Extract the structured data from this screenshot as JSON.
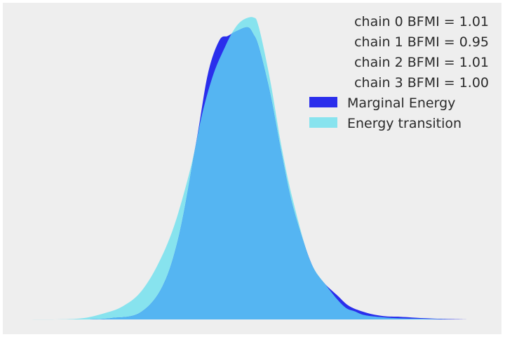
{
  "chart_data": {
    "type": "area",
    "title": "",
    "xlabel": "",
    "ylabel": "",
    "grid": false,
    "axes_visible": false,
    "legend_position": "top-right",
    "legend_text": [
      "chain  0 BFMI = 1.01",
      "chain  1 BFMI = 0.95",
      "chain  2 BFMI = 1.01",
      "chain  3 BFMI = 1.00"
    ],
    "xlim": [
      -4.0,
      4.0
    ],
    "ylim": [
      0,
      0.46
    ],
    "series": [
      {
        "name": "Marginal Energy",
        "color": "#2a2eec",
        "x": [
          -2.9,
          -2.5,
          -2.0,
          -1.6,
          -1.3,
          -1.0,
          -0.8,
          -0.6,
          -0.45,
          -0.3,
          -0.1,
          0.0,
          0.1,
          0.3,
          0.5,
          0.7,
          1.0,
          1.2,
          1.5,
          1.7,
          2.0,
          2.3,
          2.6,
          3.0,
          3.3,
          3.8
        ],
        "y": [
          0.0,
          0.002,
          0.01,
          0.05,
          0.13,
          0.27,
          0.37,
          0.42,
          0.427,
          0.434,
          0.44,
          0.43,
          0.41,
          0.34,
          0.25,
          0.17,
          0.09,
          0.06,
          0.035,
          0.02,
          0.01,
          0.005,
          0.004,
          0.002,
          0.001,
          0.0
        ]
      },
      {
        "name": "Energy transition",
        "color": "#87e3ee",
        "x": [
          -4.0,
          -3.5,
          -3.0,
          -2.6,
          -2.3,
          -2.0,
          -1.7,
          -1.4,
          -1.1,
          -0.9,
          -0.7,
          -0.5,
          -0.35,
          -0.2,
          0.0,
          0.1,
          0.3,
          0.5,
          0.7,
          1.0,
          1.3,
          1.6,
          1.8,
          2.0,
          2.5,
          3.0,
          3.5
        ],
        "y": [
          0.0,
          0.0,
          0.002,
          0.01,
          0.02,
          0.04,
          0.08,
          0.14,
          0.23,
          0.31,
          0.37,
          0.41,
          0.435,
          0.45,
          0.455,
          0.44,
          0.36,
          0.26,
          0.18,
          0.09,
          0.05,
          0.02,
          0.012,
          0.006,
          0.002,
          0.001,
          0.0
        ]
      }
    ],
    "overlap_color": "#55b5f2"
  }
}
